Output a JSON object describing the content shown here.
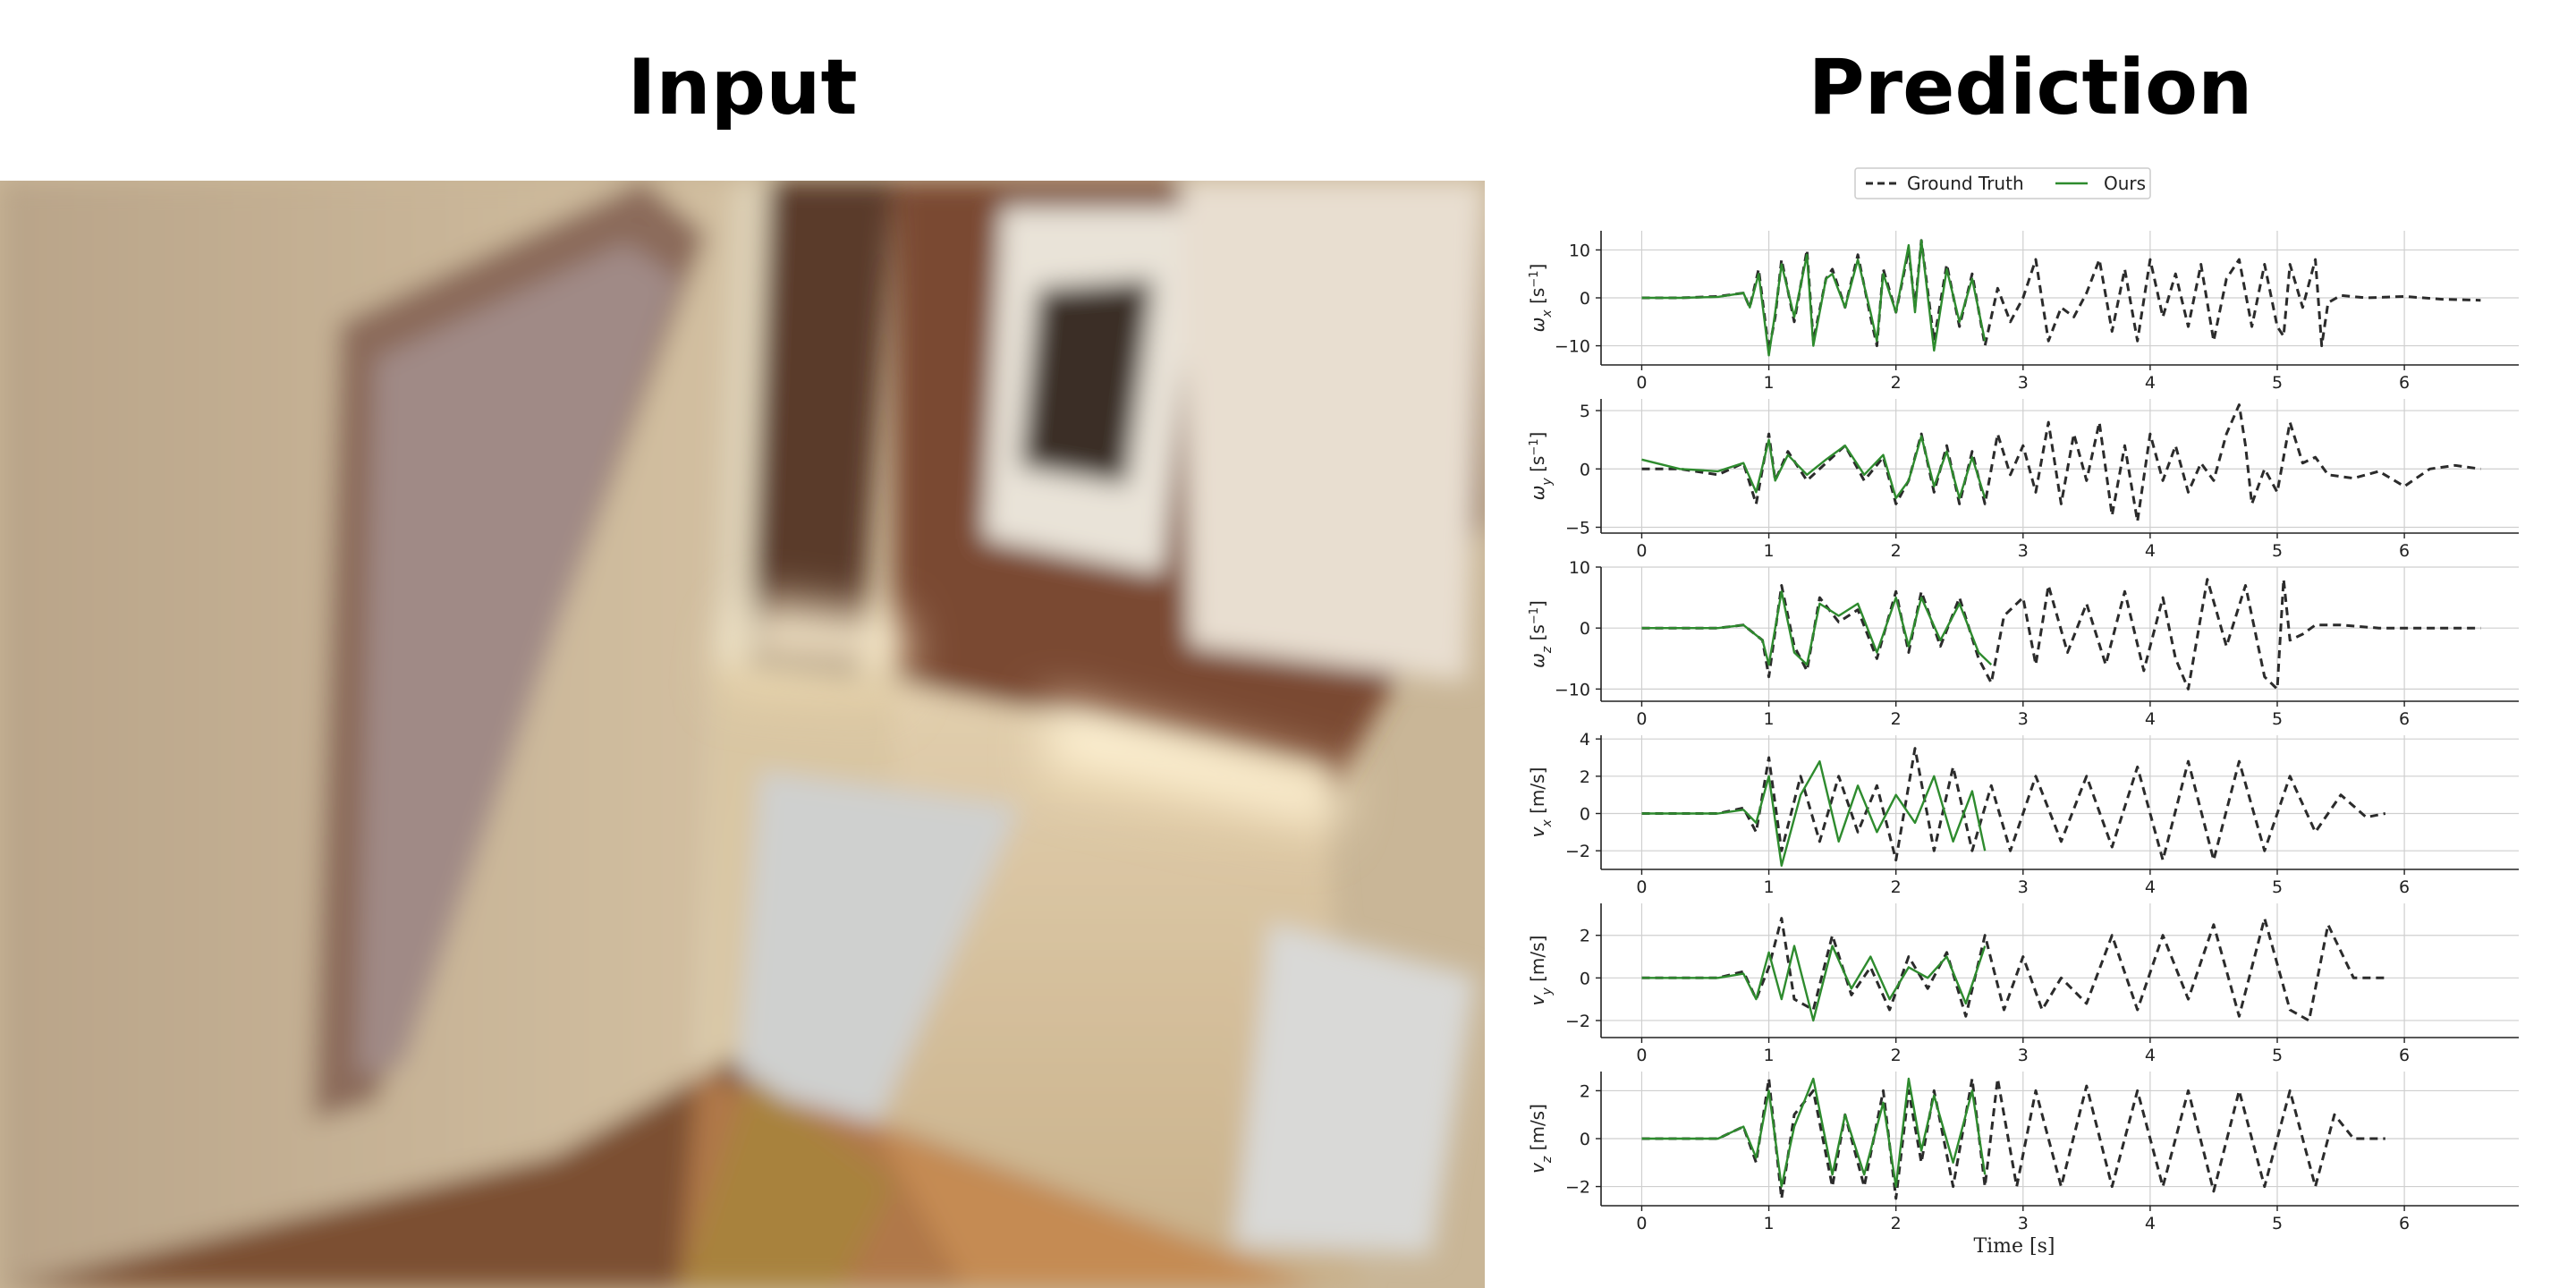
{
  "titles": {
    "input": "Input",
    "prediction": "Prediction"
  },
  "colors": {
    "ground_truth": "#2b2b2b",
    "ours": "#2e8b2e",
    "grid": "#cfcfcf"
  },
  "chart_data": {
    "type": "line",
    "legend": {
      "entries": [
        "Ground Truth",
        "Ours"
      ],
      "placement": "top-center"
    },
    "xlabel": "Time [s]",
    "xlim": [
      -0.32,
      6.9
    ],
    "xticks": [
      0,
      1,
      2,
      3,
      4,
      5,
      6
    ],
    "grid": true,
    "panels": [
      {
        "ylabel": "ω_x [s⁻¹]",
        "ylabel_main": "ω",
        "ylabel_sub": "x",
        "ylabel_unit": " [s",
        "ylabel_sup": "−1",
        "ylabel_close": "]",
        "ylim": [
          -14,
          14
        ],
        "yticks": [
          -10,
          0,
          10
        ],
        "series": [
          {
            "name": "Ground Truth",
            "x": [
              0,
              0.3,
              0.6,
              0.8,
              0.85,
              0.92,
              1.0,
              1.05,
              1.1,
              1.2,
              1.3,
              1.35,
              1.45,
              1.5,
              1.6,
              1.7,
              1.8,
              1.85,
              1.9,
              2.0,
              2.1,
              2.15,
              2.2,
              2.3,
              2.4,
              2.5,
              2.6,
              2.7,
              2.8,
              2.9,
              3.0,
              3.1,
              3.2,
              3.3,
              3.4,
              3.5,
              3.6,
              3.7,
              3.8,
              3.9,
              4.0,
              4.1,
              4.2,
              4.3,
              4.4,
              4.5,
              4.6,
              4.7,
              4.8,
              4.9,
              5.0,
              5.05,
              5.1,
              5.2,
              5.3,
              5.35,
              5.4,
              5.5,
              5.7,
              6.0,
              6.3,
              6.6
            ],
            "y": [
              0,
              0,
              0.3,
              1,
              -2,
              6,
              -11,
              -4,
              8,
              -5,
              10,
              -9,
              4,
              6,
              -2,
              9,
              -4,
              -10,
              6,
              -3,
              10,
              -2,
              12,
              -9,
              7,
              -6,
              5,
              -10,
              2,
              -5,
              0,
              8,
              -9,
              -2,
              -4,
              1,
              8,
              -7,
              6,
              -9,
              8,
              -4,
              5,
              -6,
              7,
              -9,
              4,
              8,
              -6,
              7,
              -6,
              -8,
              7,
              -2,
              8,
              -10,
              -1,
              0.5,
              0,
              0.3,
              -0.3,
              -0.5
            ]
          },
          {
            "name": "Ours",
            "x": [
              0,
              0.3,
              0.6,
              0.8,
              0.85,
              0.92,
              1.0,
              1.05,
              1.1,
              1.2,
              1.3,
              1.35,
              1.45,
              1.5,
              1.6,
              1.7,
              1.8,
              1.85,
              1.9,
              2.0,
              2.1,
              2.15,
              2.2,
              2.3,
              2.4,
              2.5,
              2.6,
              2.7
            ],
            "y": [
              0,
              0,
              0.2,
              1,
              -2,
              5,
              -12,
              -3,
              7,
              -4,
              9,
              -10,
              4,
              5,
              -2,
              8,
              -3,
              -9,
              5,
              -3,
              11,
              -3,
              12,
              -11,
              6,
              -5,
              4,
              -9
            ]
          }
        ]
      },
      {
        "ylabel": "ω_y [s⁻¹]",
        "ylabel_main": "ω",
        "ylabel_sub": "y",
        "ylabel_unit": " [s",
        "ylabel_sup": "−1",
        "ylabel_close": "]",
        "ylim": [
          -5.5,
          6
        ],
        "yticks": [
          -5,
          0,
          5
        ],
        "series": [
          {
            "name": "Ground Truth",
            "x": [
              0,
              0.3,
              0.6,
              0.8,
              0.9,
              1.0,
              1.05,
              1.15,
              1.3,
              1.45,
              1.6,
              1.75,
              1.9,
              2.0,
              2.1,
              2.2,
              2.3,
              2.4,
              2.5,
              2.6,
              2.7,
              2.8,
              2.9,
              3.0,
              3.1,
              3.2,
              3.3,
              3.4,
              3.5,
              3.6,
              3.7,
              3.8,
              3.9,
              4.0,
              4.1,
              4.2,
              4.3,
              4.4,
              4.5,
              4.6,
              4.7,
              4.75,
              4.8,
              4.9,
              5.0,
              5.1,
              5.2,
              5.3,
              5.4,
              5.6,
              5.8,
              6.0,
              6.2,
              6.4,
              6.6
            ],
            "y": [
              0,
              0,
              -0.5,
              0.5,
              -3,
              3,
              -1,
              1.5,
              -1,
              0.5,
              2,
              -1,
              1,
              -3,
              -1,
              3,
              -2,
              2,
              -3,
              1.5,
              -3,
              3,
              -0.5,
              2,
              -2,
              4,
              -3,
              3,
              -1,
              4,
              -4,
              2,
              -4.5,
              3,
              -1,
              2,
              -2,
              0.5,
              -1,
              3,
              5.5,
              2,
              -3,
              0,
              -2,
              4,
              0.5,
              1,
              -0.5,
              -0.8,
              -0.2,
              -1.5,
              0,
              0.3,
              0
            ]
          },
          {
            "name": "Ours",
            "x": [
              0,
              0.3,
              0.6,
              0.8,
              0.9,
              1.0,
              1.05,
              1.15,
              1.3,
              1.45,
              1.6,
              1.75,
              1.9,
              2.0,
              2.1,
              2.2,
              2.3,
              2.4,
              2.5,
              2.6,
              2.7
            ],
            "y": [
              0.8,
              0,
              -0.2,
              0.5,
              -2,
              2.5,
              -1,
              1.2,
              -0.5,
              0.8,
              2,
              -0.5,
              1.2,
              -2.5,
              -1,
              2.8,
              -1.5,
              1.5,
              -2.5,
              1,
              -2.5
            ]
          }
        ]
      },
      {
        "ylabel": "ω_z [s⁻¹]",
        "ylabel_main": "ω",
        "ylabel_sub": "z",
        "ylabel_unit": " [s",
        "ylabel_sup": "−1",
        "ylabel_close": "]",
        "ylim": [
          -12,
          10
        ],
        "yticks": [
          -10,
          0,
          10
        ],
        "series": [
          {
            "name": "Ground Truth",
            "x": [
              0,
              0.3,
              0.6,
              0.8,
              0.95,
              1.0,
              1.1,
              1.2,
              1.3,
              1.4,
              1.55,
              1.7,
              1.85,
              2.0,
              2.1,
              2.2,
              2.35,
              2.5,
              2.65,
              2.75,
              2.85,
              3.0,
              3.1,
              3.2,
              3.35,
              3.5,
              3.65,
              3.8,
              3.95,
              4.1,
              4.2,
              4.3,
              4.45,
              4.6,
              4.75,
              4.9,
              5.0,
              5.05,
              5.1,
              5.2,
              5.3,
              5.5,
              5.8,
              6.1,
              6.6
            ],
            "y": [
              0,
              0,
              0,
              0.5,
              -2,
              -8,
              7,
              -3,
              -7,
              5,
              1,
              3,
              -5,
              6,
              -4,
              6,
              -3,
              5,
              -5,
              -9,
              2,
              5,
              -6,
              7,
              -4,
              4,
              -6,
              6,
              -7,
              5,
              -5,
              -10,
              8,
              -3,
              7,
              -8,
              -10,
              8,
              -2,
              -1,
              0.5,
              0.5,
              0,
              0,
              0
            ]
          },
          {
            "name": "Ours",
            "x": [
              0,
              0.3,
              0.6,
              0.8,
              0.95,
              1.0,
              1.1,
              1.2,
              1.3,
              1.4,
              1.55,
              1.7,
              1.85,
              2.0,
              2.1,
              2.2,
              2.35,
              2.5,
              2.65,
              2.75
            ],
            "y": [
              0,
              0,
              0,
              0.5,
              -2,
              -6,
              6,
              -4,
              -6,
              4,
              2,
              4,
              -4,
              5,
              -3,
              5,
              -2,
              4,
              -4,
              -6
            ]
          }
        ]
      },
      {
        "ylabel": "v_x [m/s]",
        "ylabel_main": "v",
        "ylabel_sub": "x",
        "ylabel_unit": " [m/s]",
        "ylabel_sup": "",
        "ylabel_close": "",
        "ylim": [
          -3,
          4.2
        ],
        "yticks": [
          -2,
          0,
          2,
          4
        ],
        "series": [
          {
            "name": "Ground Truth",
            "x": [
              0,
              0.3,
              0.6,
              0.8,
              0.9,
              1.0,
              1.1,
              1.25,
              1.4,
              1.55,
              1.7,
              1.85,
              2.0,
              2.15,
              2.3,
              2.45,
              2.6,
              2.75,
              2.9,
              3.1,
              3.3,
              3.5,
              3.7,
              3.9,
              4.1,
              4.3,
              4.5,
              4.7,
              4.9,
              5.1,
              5.3,
              5.5,
              5.7,
              5.85
            ],
            "y": [
              0,
              0,
              0,
              0.3,
              -1,
              3,
              -2,
              2,
              -1.5,
              2,
              -1,
              1.5,
              -2.5,
              3.5,
              -2,
              2.5,
              -2,
              1.5,
              -2,
              2,
              -1.5,
              2,
              -1.8,
              2.5,
              -2.5,
              2.8,
              -2.5,
              2.8,
              -2,
              2,
              -1,
              1,
              -0.2,
              0
            ]
          },
          {
            "name": "Ours",
            "x": [
              0,
              0.3,
              0.6,
              0.8,
              0.9,
              1.0,
              1.1,
              1.25,
              1.4,
              1.55,
              1.7,
              1.85,
              2.0,
              2.15,
              2.3,
              2.45,
              2.6,
              2.7
            ],
            "y": [
              0,
              0,
              0,
              0.2,
              -0.5,
              2,
              -2.8,
              1,
              2.8,
              -1.5,
              1.5,
              -1,
              1,
              -0.5,
              2,
              -1.5,
              1.2,
              -2
            ]
          }
        ]
      },
      {
        "ylabel": "v_y [m/s]",
        "ylabel_main": "v",
        "ylabel_sub": "y",
        "ylabel_unit": " [m/s]",
        "ylabel_sup": "",
        "ylabel_close": "",
        "ylim": [
          -2.8,
          3.5
        ],
        "yticks": [
          -2,
          0,
          2
        ],
        "series": [
          {
            "name": "Ground Truth",
            "x": [
              0,
              0.3,
              0.6,
              0.8,
              0.9,
              1.0,
              1.1,
              1.2,
              1.35,
              1.5,
              1.65,
              1.8,
              1.95,
              2.1,
              2.25,
              2.4,
              2.55,
              2.7,
              2.85,
              3.0,
              3.15,
              3.3,
              3.5,
              3.7,
              3.9,
              4.1,
              4.3,
              4.5,
              4.7,
              4.9,
              5.1,
              5.25,
              5.4,
              5.6,
              5.85
            ],
            "y": [
              0,
              0,
              0,
              0.3,
              -1,
              0.5,
              2.8,
              -1,
              -1.5,
              2,
              -0.8,
              0.5,
              -1.5,
              1,
              -0.5,
              1.2,
              -1.8,
              2,
              -1.5,
              1,
              -1.5,
              0,
              -1.2,
              2,
              -1.5,
              2,
              -1,
              2.5,
              -1.8,
              2.8,
              -1.5,
              -2,
              2.5,
              0,
              0
            ]
          },
          {
            "name": "Ours",
            "x": [
              0,
              0.3,
              0.6,
              0.8,
              0.9,
              1.0,
              1.1,
              1.2,
              1.35,
              1.5,
              1.65,
              1.8,
              1.95,
              2.1,
              2.25,
              2.4,
              2.55,
              2.7
            ],
            "y": [
              0,
              0,
              0,
              0.2,
              -1,
              1.2,
              -1,
              1.5,
              -2,
              1.5,
              -0.5,
              1,
              -1,
              0.5,
              0,
              1,
              -1.2,
              1.5
            ]
          }
        ]
      },
      {
        "ylabel": "v_z [m/s]",
        "ylabel_main": "v",
        "ylabel_sub": "z",
        "ylabel_unit": " [m/s]",
        "ylabel_sup": "",
        "ylabel_close": "",
        "ylim": [
          -2.8,
          2.8
        ],
        "yticks": [
          -2,
          0,
          2
        ],
        "series": [
          {
            "name": "Ground Truth",
            "x": [
              0,
              0.3,
              0.6,
              0.8,
              0.9,
              1.0,
              1.1,
              1.2,
              1.35,
              1.5,
              1.6,
              1.75,
              1.9,
              2.0,
              2.1,
              2.2,
              2.3,
              2.45,
              2.6,
              2.7,
              2.8,
              2.95,
              3.1,
              3.3,
              3.5,
              3.7,
              3.9,
              4.1,
              4.3,
              4.5,
              4.7,
              4.9,
              5.1,
              5.3,
              5.45,
              5.6,
              5.85
            ],
            "y": [
              0,
              0,
              0,
              0.5,
              -1,
              2.5,
              -2.5,
              1,
              2,
              -2,
              1,
              -2,
              2,
              -2.5,
              2,
              -1,
              2,
              -2,
              2.5,
              -2,
              2.5,
              -2,
              2,
              -2,
              2.2,
              -2,
              2,
              -2,
              2,
              -2.2,
              2,
              -2,
              2,
              -2,
              1,
              0,
              0
            ]
          },
          {
            "name": "Ours",
            "x": [
              0,
              0.3,
              0.6,
              0.8,
              0.9,
              1.0,
              1.1,
              1.2,
              1.35,
              1.5,
              1.6,
              1.75,
              1.9,
              2.0,
              2.1,
              2.2,
              2.3,
              2.45,
              2.6,
              2.7
            ],
            "y": [
              0,
              0,
              0,
              0.5,
              -0.8,
              2,
              -2,
              0.5,
              2.5,
              -1.5,
              1,
              -1.5,
              1.5,
              -2,
              2.5,
              -0.5,
              1.8,
              -1,
              2,
              -1.5
            ]
          }
        ]
      }
    ]
  }
}
